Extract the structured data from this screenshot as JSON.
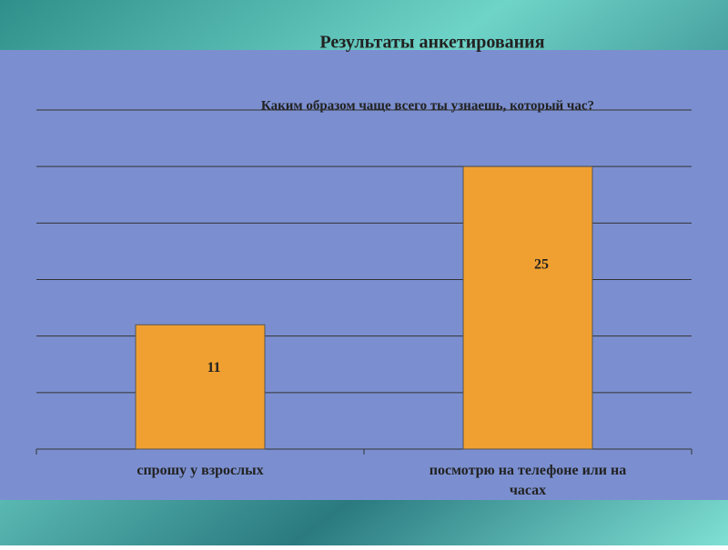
{
  "chart_data": {
    "type": "bar",
    "title": "Результаты анкетирования",
    "subtitle": "Каким образом чаще всего ты узнаешь, который час?",
    "categories": [
      "спрошу у взрослых",
      "посмотрю на телефоне или на часах"
    ],
    "values": [
      11,
      25
    ],
    "color": "#f0a030",
    "ylim": [
      0,
      30
    ],
    "yticks": [
      0,
      5,
      10,
      15,
      20,
      25,
      30
    ],
    "grid": true
  }
}
